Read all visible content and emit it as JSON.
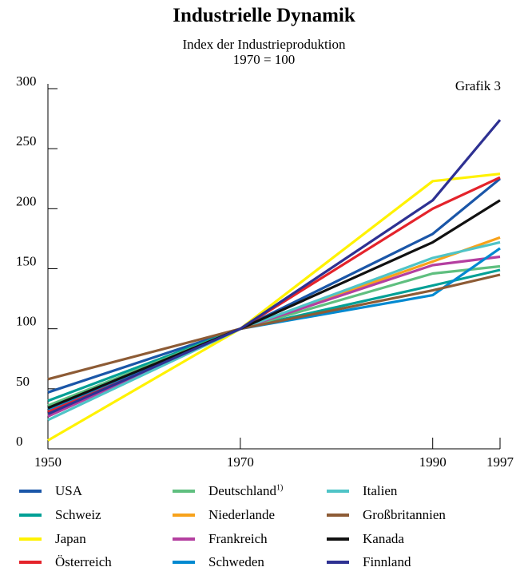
{
  "chart_data": {
    "type": "line",
    "title": "Industrielle Dynamik",
    "subtitle_line1": "Index der Industrieproduktion",
    "subtitle_line2": "1970 = 100",
    "note": "Grafik 3",
    "x": [
      1950,
      1970,
      1990,
      1997
    ],
    "x_tick_labels": [
      "1950",
      "1970",
      "1990",
      "1997"
    ],
    "y_ticks": [
      0,
      50,
      100,
      150,
      200,
      250,
      300
    ],
    "y_tick_labels": [
      "0",
      "50",
      "100",
      "150",
      "200",
      "250",
      "300"
    ],
    "ylim": [
      0,
      300
    ],
    "grid": false,
    "legend_position": "bottom",
    "series": [
      {
        "name": "USA",
        "color": "#1a56a8",
        "values": [
          47,
          100,
          179,
          225
        ]
      },
      {
        "name": "Schweiz",
        "color": "#00a096",
        "values": [
          40,
          100,
          136,
          149
        ]
      },
      {
        "name": "Japan",
        "color": "#fff200",
        "values": [
          7,
          100,
          223,
          229
        ]
      },
      {
        "name": "Österreich",
        "color": "#e4232b",
        "values": [
          31,
          100,
          200,
          226
        ]
      },
      {
        "name": "Deutschland",
        "name_sup": "1)",
        "color": "#5fbf7f",
        "values": [
          36,
          100,
          146,
          152
        ]
      },
      {
        "name": "Niederlande",
        "color": "#f7a21b",
        "values": [
          28,
          100,
          156,
          176
        ]
      },
      {
        "name": "Frankreich",
        "color": "#b43fa0",
        "values": [
          27,
          100,
          153,
          160
        ]
      },
      {
        "name": "Schweden",
        "color": "#0089d0",
        "values": [
          33,
          100,
          128,
          167
        ]
      },
      {
        "name": "Italien",
        "color": "#4fc4c7",
        "values": [
          24,
          100,
          159,
          172
        ]
      },
      {
        "name": "Großbritannien",
        "color": "#8d5b35",
        "values": [
          58,
          100,
          132,
          145
        ]
      },
      {
        "name": "Kanada",
        "color": "#111111",
        "values": [
          34,
          100,
          172,
          207
        ]
      },
      {
        "name": "Finnland",
        "color": "#2e3192",
        "values": [
          29,
          100,
          207,
          274
        ]
      }
    ]
  }
}
